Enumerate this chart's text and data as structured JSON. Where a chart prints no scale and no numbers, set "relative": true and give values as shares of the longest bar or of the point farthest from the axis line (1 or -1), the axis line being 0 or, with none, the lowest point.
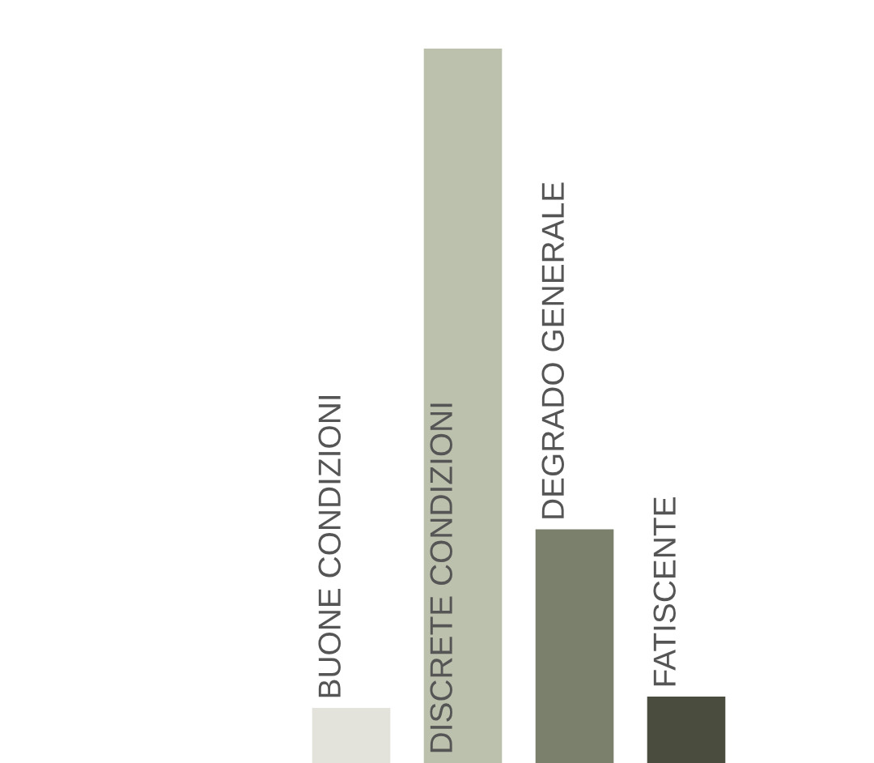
{
  "chart_data": {
    "type": "bar",
    "relative": true,
    "categories": [
      "BUONE CONDIZIONI",
      "DISCRETE CONDIZIONI",
      "DEGRADO GENERALE",
      "FATISCENTE"
    ],
    "values": [
      0.077,
      1,
      0.327,
      0.093
    ],
    "colors": [
      "#e3e3dc",
      "#bcc1ad",
      "#7b806c",
      "#4a4d3e"
    ],
    "legend": false
  }
}
